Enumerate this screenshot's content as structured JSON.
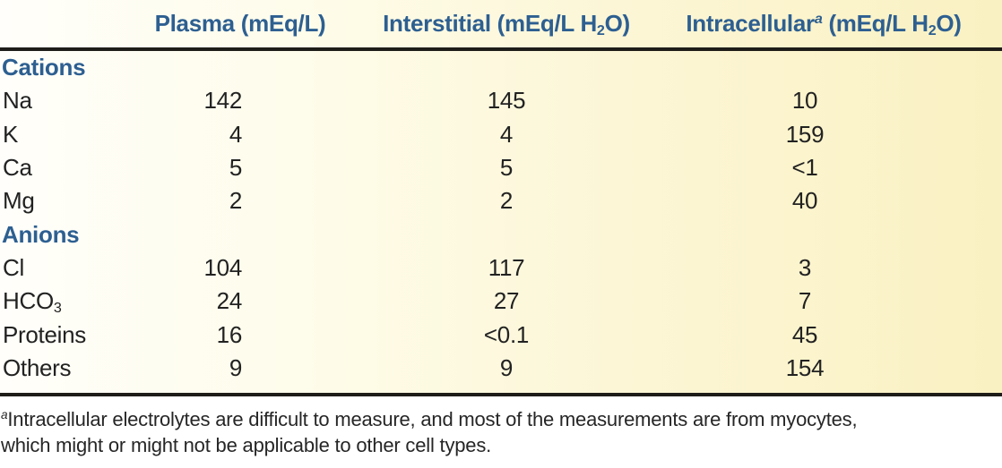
{
  "accent_blue": "#2d5f91",
  "table": {
    "headers": {
      "plasma": {
        "text": "Plasma (mEq/L)"
      },
      "interstitial": {
        "pre": "Interstitial (mEq/L H",
        "sub": "2",
        "post": "O)"
      },
      "intracellular": {
        "name": "Intracellular",
        "sup": "a",
        "mid": " (mEq/L H",
        "sub": "2",
        "post": "O)"
      }
    },
    "sections": [
      {
        "title": "Cations",
        "rows": [
          {
            "label": "Na",
            "plasma": "142",
            "interstitial": "145",
            "intracellular": "10"
          },
          {
            "label": "K",
            "plasma": "4",
            "interstitial": "4",
            "intracellular": "159"
          },
          {
            "label": "Ca",
            "plasma": "5",
            "interstitial": "5",
            "intracellular": "<1"
          },
          {
            "label": "Mg",
            "plasma": "2",
            "interstitial": "2",
            "intracellular": "40"
          }
        ]
      },
      {
        "title": "Anions",
        "rows": [
          {
            "label": "Cl",
            "plasma": "104",
            "interstitial": "117",
            "intracellular": "3"
          },
          {
            "label": "HCO",
            "label_sub": "3",
            "plasma": "24",
            "interstitial": "27",
            "intracellular": "7"
          },
          {
            "label": "Proteins",
            "plasma": "16",
            "interstitial": "<0.1",
            "intracellular": "45"
          },
          {
            "label": "Others",
            "plasma": "9",
            "interstitial": "9",
            "intracellular": "154"
          }
        ]
      }
    ]
  },
  "footnote": {
    "marker": "a",
    "line1": "Intracellular electrolytes are difficult to measure, and most of the measurements are from myocytes,",
    "line2": "which might or might not be applicable to other cell types."
  }
}
